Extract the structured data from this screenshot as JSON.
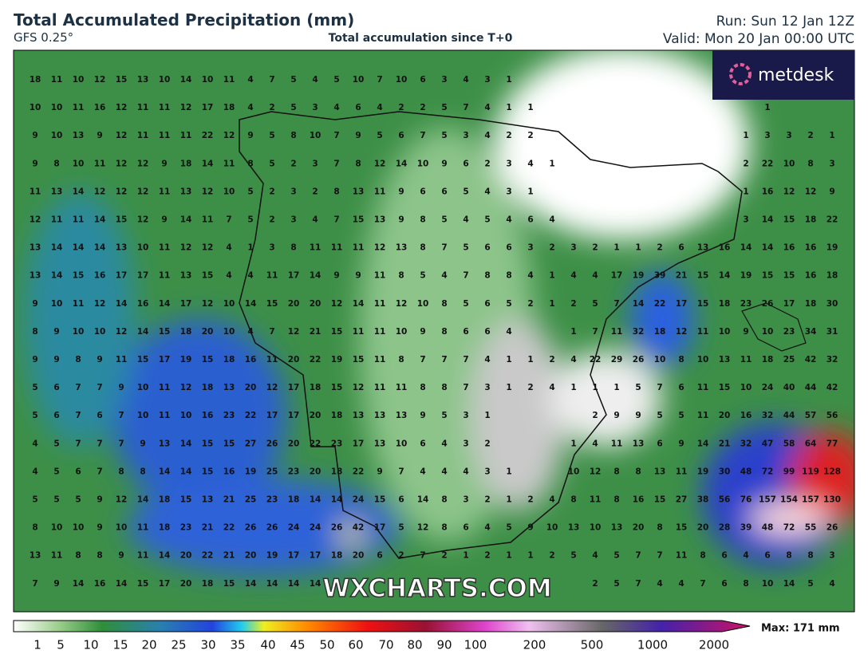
{
  "header": {
    "title": "Total Accumulated Precipitation (mm)",
    "model": "GFS 0.25°",
    "subtitle": "Total accumulation since T+0",
    "run": "Run: Sun 12 Jan 12Z",
    "valid": "Valid: Mon 20 Jan 00:00 UTC"
  },
  "logo": "metdesk",
  "watermark": "WXCHARTS.COM",
  "legend": {
    "labels": [
      1,
      5,
      10,
      15,
      20,
      25,
      30,
      35,
      40,
      45,
      50,
      60,
      70,
      80,
      90,
      100,
      200,
      500,
      1000,
      2000
    ],
    "max": "Max: 171 mm"
  },
  "grid": {
    "rows": [
      [
        18,
        11,
        10,
        12,
        15,
        13,
        10,
        14,
        10,
        11,
        4,
        7,
        5,
        4,
        5,
        10,
        7,
        10,
        6,
        3,
        4,
        3,
        1,
        null,
        null,
        null,
        null,
        null,
        null,
        null,
        null,
        null,
        null,
        null,
        null,
        null,
        null,
        null
      ],
      [
        10,
        10,
        11,
        16,
        12,
        11,
        11,
        12,
        17,
        18,
        4,
        2,
        5,
        3,
        4,
        6,
        4,
        2,
        2,
        5,
        7,
        4,
        1,
        1,
        null,
        null,
        null,
        null,
        null,
        null,
        null,
        null,
        null,
        null,
        1,
        null,
        null,
        null
      ],
      [
        9,
        10,
        13,
        9,
        12,
        11,
        11,
        11,
        22,
        12,
        9,
        5,
        8,
        10,
        7,
        9,
        5,
        6,
        7,
        5,
        3,
        4,
        2,
        2,
        null,
        null,
        null,
        null,
        null,
        null,
        null,
        null,
        null,
        1,
        3,
        3,
        2,
        1
      ],
      [
        9,
        8,
        10,
        11,
        12,
        12,
        9,
        18,
        14,
        11,
        8,
        5,
        2,
        3,
        7,
        8,
        12,
        14,
        10,
        9,
        6,
        2,
        3,
        4,
        1,
        null,
        null,
        null,
        null,
        null,
        null,
        null,
        null,
        2,
        22,
        10,
        8,
        3
      ],
      [
        11,
        13,
        14,
        12,
        12,
        12,
        11,
        13,
        12,
        10,
        5,
        2,
        3,
        2,
        8,
        13,
        11,
        9,
        6,
        6,
        5,
        4,
        3,
        1,
        null,
        null,
        null,
        null,
        null,
        null,
        null,
        null,
        null,
        1,
        16,
        12,
        12,
        9
      ],
      [
        12,
        11,
        11,
        14,
        15,
        12,
        9,
        14,
        11,
        7,
        5,
        2,
        3,
        4,
        7,
        15,
        13,
        9,
        8,
        5,
        4,
        5,
        4,
        6,
        4,
        null,
        null,
        null,
        null,
        null,
        null,
        null,
        null,
        3,
        14,
        15,
        18,
        22
      ],
      [
        13,
        14,
        14,
        14,
        13,
        10,
        11,
        12,
        12,
        4,
        1,
        3,
        8,
        11,
        11,
        11,
        12,
        13,
        8,
        7,
        5,
        6,
        6,
        3,
        2,
        3,
        2,
        1,
        1,
        2,
        6,
        13,
        16,
        14,
        14,
        16,
        16,
        19
      ],
      [
        13,
        14,
        15,
        16,
        17,
        17,
        11,
        13,
        15,
        4,
        4,
        11,
        17,
        14,
        9,
        9,
        11,
        8,
        5,
        4,
        7,
        8,
        8,
        4,
        1,
        4,
        4,
        17,
        19,
        39,
        21,
        15,
        14,
        19,
        15,
        15,
        16,
        18
      ],
      [
        9,
        10,
        11,
        12,
        14,
        16,
        14,
        17,
        12,
        10,
        14,
        15,
        20,
        20,
        12,
        14,
        11,
        12,
        10,
        8,
        5,
        6,
        5,
        2,
        1,
        2,
        5,
        7,
        14,
        22,
        17,
        15,
        18,
        23,
        26,
        17,
        18,
        30
      ],
      [
        8,
        9,
        10,
        10,
        12,
        14,
        15,
        18,
        20,
        10,
        4,
        7,
        12,
        21,
        15,
        11,
        11,
        10,
        9,
        8,
        6,
        6,
        4,
        null,
        null,
        1,
        7,
        11,
        32,
        18,
        12,
        11,
        10,
        9,
        10,
        23,
        34,
        31
      ],
      [
        9,
        9,
        8,
        9,
        11,
        15,
        17,
        19,
        15,
        18,
        16,
        11,
        20,
        22,
        19,
        15,
        11,
        8,
        7,
        7,
        7,
        4,
        1,
        1,
        2,
        4,
        22,
        29,
        26,
        10,
        8,
        10,
        13,
        11,
        18,
        25,
        42,
        32
      ],
      [
        5,
        6,
        7,
        7,
        9,
        10,
        11,
        12,
        18,
        13,
        20,
        12,
        17,
        18,
        15,
        12,
        11,
        11,
        8,
        8,
        7,
        3,
        1,
        2,
        4,
        1,
        1,
        1,
        5,
        7,
        6,
        11,
        15,
        10,
        24,
        40,
        44,
        42
      ],
      [
        5,
        6,
        7,
        6,
        7,
        10,
        11,
        10,
        16,
        23,
        22,
        17,
        17,
        20,
        18,
        13,
        13,
        13,
        9,
        5,
        3,
        1,
        null,
        null,
        null,
        null,
        2,
        9,
        9,
        5,
        5,
        11,
        20,
        16,
        32,
        44,
        57,
        56
      ],
      [
        4,
        5,
        7,
        7,
        7,
        9,
        13,
        14,
        15,
        15,
        27,
        26,
        20,
        22,
        23,
        17,
        13,
        10,
        6,
        4,
        3,
        2,
        null,
        null,
        null,
        1,
        4,
        11,
        13,
        6,
        9,
        14,
        21,
        32,
        47,
        58,
        64,
        77
      ],
      [
        4,
        5,
        6,
        7,
        8,
        8,
        14,
        14,
        15,
        16,
        19,
        25,
        23,
        20,
        18,
        22,
        9,
        7,
        4,
        4,
        4,
        3,
        1,
        null,
        null,
        10,
        12,
        8,
        8,
        13,
        11,
        19,
        30,
        48,
        72,
        99,
        119,
        128
      ],
      [
        5,
        5,
        5,
        9,
        12,
        14,
        18,
        15,
        13,
        21,
        25,
        23,
        18,
        14,
        14,
        24,
        15,
        6,
        14,
        8,
        3,
        2,
        1,
        2,
        4,
        8,
        11,
        8,
        16,
        15,
        27,
        38,
        56,
        76,
        157,
        154,
        157,
        130
      ],
      [
        8,
        10,
        10,
        9,
        10,
        11,
        18,
        23,
        21,
        22,
        26,
        26,
        24,
        24,
        26,
        42,
        17,
        5,
        12,
        8,
        6,
        4,
        5,
        9,
        10,
        13,
        10,
        13,
        20,
        8,
        15,
        20,
        28,
        39,
        48,
        72,
        55,
        26
      ],
      [
        13,
        11,
        8,
        8,
        9,
        11,
        14,
        20,
        22,
        21,
        20,
        19,
        17,
        17,
        18,
        20,
        6,
        2,
        7,
        2,
        1,
        2,
        1,
        1,
        2,
        5,
        4,
        5,
        7,
        7,
        11,
        8,
        6,
        4,
        6,
        8,
        8,
        3
      ],
      [
        7,
        9,
        14,
        16,
        14,
        15,
        17,
        20,
        18,
        15,
        14,
        14,
        14,
        14,
        null,
        null,
        null,
        null,
        null,
        null,
        null,
        null,
        null,
        null,
        null,
        null,
        2,
        5,
        7,
        4,
        4,
        7,
        6,
        8,
        10,
        14,
        5,
        4
      ]
    ]
  }
}
